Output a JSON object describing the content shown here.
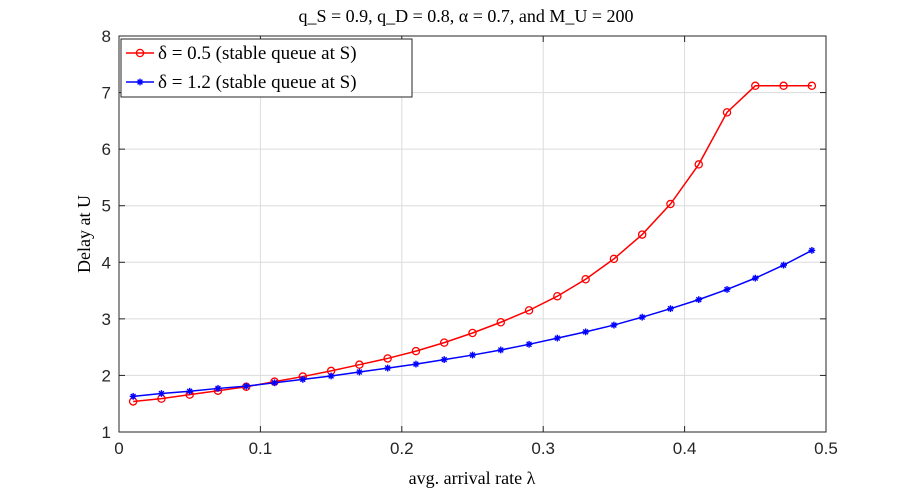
{
  "chart_data": {
    "type": "line",
    "title": "q_S = 0.9, q_D = 0.8, α = 0.7, and M_U = 200",
    "xlabel": "avg. arrival rate λ",
    "ylabel": "Delay at U",
    "xlim": [
      0,
      0.5
    ],
    "ylim": [
      1,
      8
    ],
    "xticks": [
      0,
      0.1,
      0.2,
      0.3,
      0.4,
      0.5
    ],
    "xtick_labels": [
      "0",
      "0.1",
      "0.2",
      "0.3",
      "0.4",
      "0.5"
    ],
    "yticks": [
      1,
      2,
      3,
      4,
      5,
      6,
      7,
      8
    ],
    "ytick_labels": [
      "1",
      "2",
      "3",
      "4",
      "5",
      "6",
      "7",
      "8"
    ],
    "grid": true,
    "legend_position": "top-left",
    "x": [
      0.01,
      0.03,
      0.05,
      0.07,
      0.09,
      0.11,
      0.13,
      0.15,
      0.17,
      0.19,
      0.21,
      0.23,
      0.25,
      0.27,
      0.29,
      0.31,
      0.33,
      0.35,
      0.37,
      0.39,
      0.41,
      0.43,
      0.45,
      0.47,
      0.49
    ],
    "series": [
      {
        "name": "δ = 0.5 (stable queue at S)",
        "color": "#ff0000",
        "marker": "circle",
        "values": [
          1.54,
          1.59,
          1.66,
          1.73,
          1.8,
          1.89,
          1.98,
          2.08,
          2.19,
          2.3,
          2.43,
          2.58,
          2.75,
          2.94,
          3.15,
          3.4,
          3.7,
          4.06,
          4.49,
          5.03,
          5.73,
          6.65,
          7.12,
          7.12,
          7.12
        ]
      },
      {
        "name": "δ = 1.2 (stable queue at S)",
        "color": "#0000ff",
        "marker": "star",
        "values": [
          1.63,
          1.68,
          1.72,
          1.77,
          1.81,
          1.87,
          1.93,
          1.99,
          2.06,
          2.13,
          2.2,
          2.28,
          2.36,
          2.45,
          2.55,
          2.66,
          2.77,
          2.89,
          3.03,
          3.18,
          3.34,
          3.52,
          3.72,
          3.95,
          4.21
        ]
      }
    ]
  }
}
